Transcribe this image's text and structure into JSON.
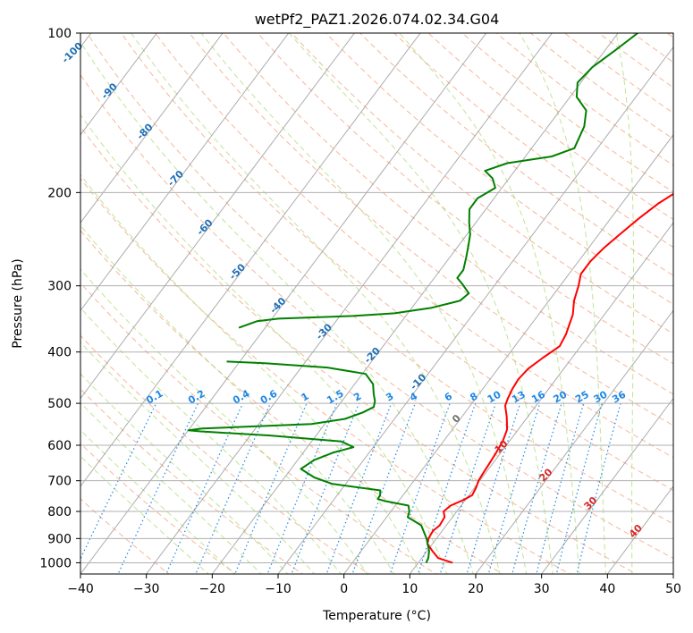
{
  "chart_data": {
    "type": "line",
    "title": "wetPf2_PAZ1.2026.074.02.34.G04",
    "xlabel": "Temperature (°C)",
    "ylabel": "Pressure (hPa)",
    "xlim": [
      -40,
      50
    ],
    "ylim": [
      1050,
      100
    ],
    "y_scale": "log",
    "grid": true,
    "x_ticks": [
      -40,
      -30,
      -20,
      -10,
      0,
      10,
      20,
      30,
      40,
      50
    ],
    "y_ticks": [
      100,
      200,
      300,
      400,
      500,
      600,
      700,
      800,
      900,
      1000
    ],
    "background_lines": {
      "isotherms": "skewed, grey",
      "dry_adiabats": "dashed, light red",
      "moist_adiabats": "dashed, light green",
      "mixing_ratio_lines": "dotted, blue"
    },
    "mixing_ratio_labels": [
      "0.1",
      "0.2",
      "0.4",
      "0.6",
      "1",
      "1.5",
      "2",
      "3",
      "4",
      "6",
      "8",
      "10",
      "13",
      "16",
      "20",
      "25",
      "30",
      "36"
    ],
    "skewed_isotherm_labels_blue": [
      "-100",
      "-90",
      "-80",
      "-70",
      "-60",
      "-50",
      "-40",
      "-30",
      "-20",
      "-10"
    ],
    "skewed_isotherm_labels_grey": [
      "0"
    ],
    "skewed_isotherm_labels_red": [
      "10",
      "20",
      "30",
      "40"
    ],
    "series": [
      {
        "color": "#ff0000",
        "points": [
          [
            15.2,
            1000
          ],
          [
            12.5,
            980
          ],
          [
            10.8,
            950
          ],
          [
            9.2,
            920
          ],
          [
            8.8,
            900
          ],
          [
            8.6,
            870
          ],
          [
            9.0,
            850
          ],
          [
            8.8,
            820
          ],
          [
            8.0,
            800
          ],
          [
            8.4,
            780
          ],
          [
            9.8,
            760
          ],
          [
            10.5,
            745
          ],
          [
            10.2,
            720
          ],
          [
            9.8,
            700
          ],
          [
            9.6,
            670
          ],
          [
            9.5,
            650
          ],
          [
            9.3,
            620
          ],
          [
            9.0,
            590
          ],
          [
            8.3,
            560
          ],
          [
            6.8,
            530
          ],
          [
            5.3,
            505
          ],
          [
            4.9,
            490
          ],
          [
            4.5,
            470
          ],
          [
            4.3,
            450
          ],
          [
            4.6,
            430
          ],
          [
            5.6,
            410
          ],
          [
            6.8,
            390
          ],
          [
            6.4,
            370
          ],
          [
            5.8,
            355
          ],
          [
            5.2,
            340
          ],
          [
            3.8,
            320
          ],
          [
            2.8,
            300
          ],
          [
            1.8,
            285
          ],
          [
            1.8,
            270
          ],
          [
            2.3,
            255
          ],
          [
            3.2,
            240
          ],
          [
            4.2,
            225
          ],
          [
            5.5,
            210
          ],
          [
            7.2,
            198
          ],
          [
            9.2,
            188
          ],
          [
            11.2,
            178
          ],
          [
            12.5,
            168
          ],
          [
            13.5,
            155
          ],
          [
            15.0,
            140
          ],
          [
            16.8,
            128
          ],
          [
            17.5,
            118
          ],
          [
            18.5,
            110
          ],
          [
            20.0,
            100
          ]
        ]
      },
      {
        "color": "#008000",
        "points": [
          [
            11.2,
            1000
          ],
          [
            11.0,
            980
          ],
          [
            10.3,
            950
          ],
          [
            8.5,
            900
          ],
          [
            6.2,
            850
          ],
          [
            3.2,
            820
          ],
          [
            2.8,
            800
          ],
          [
            2.0,
            780
          ],
          [
            -2.0,
            765
          ],
          [
            -3.4,
            758
          ],
          [
            -3.5,
            745
          ],
          [
            -4.0,
            730
          ],
          [
            -12.0,
            710
          ],
          [
            -15.5,
            690
          ],
          [
            -18.5,
            665
          ],
          [
            -17.5,
            640
          ],
          [
            -15.5,
            620
          ],
          [
            -13.0,
            605
          ],
          [
            -15.5,
            590
          ],
          [
            -27.0,
            575
          ],
          [
            -38.0,
            565
          ],
          [
            -40.0,
            562
          ],
          [
            -38.0,
            558
          ],
          [
            -22.0,
            547
          ],
          [
            -17.5,
            535
          ],
          [
            -15.5,
            520
          ],
          [
            -14.5,
            508
          ],
          [
            -15.0,
            495
          ],
          [
            -16.0,
            480
          ],
          [
            -17.2,
            460
          ],
          [
            -19.5,
            440
          ],
          [
            -26.0,
            428
          ],
          [
            -36.0,
            420
          ],
          [
            -40.0,
            418
          ],
          [
            -42.0,
            417
          ]
        ]
      },
      {
        "color": "#008000",
        "points": [
          [
            -44.0,
            360
          ],
          [
            -42.0,
            350
          ],
          [
            -39.0,
            346
          ],
          [
            -28.0,
            342
          ],
          [
            -22.0,
            338
          ],
          [
            -17.0,
            330
          ],
          [
            -13.5,
            320
          ],
          [
            -13.0,
            310
          ],
          [
            -15.0,
            298
          ],
          [
            -16.5,
            290
          ],
          [
            -16.5,
            280
          ],
          [
            -17.5,
            265
          ],
          [
            -18.5,
            252
          ],
          [
            -19.5,
            240
          ],
          [
            -21.0,
            228
          ],
          [
            -22.5,
            215
          ],
          [
            -22.5,
            205
          ],
          [
            -21.0,
            196
          ],
          [
            -22.5,
            188
          ],
          [
            -24.5,
            182
          ],
          [
            -22.0,
            176
          ],
          [
            -16.0,
            171
          ],
          [
            -13.5,
            165
          ],
          [
            -14.5,
            150
          ],
          [
            -16.0,
            140
          ],
          [
            -19.0,
            132
          ],
          [
            -20.5,
            124
          ],
          [
            -20.0,
            116
          ],
          [
            -18.5,
            108
          ],
          [
            -17.0,
            100
          ]
        ]
      }
    ]
  }
}
